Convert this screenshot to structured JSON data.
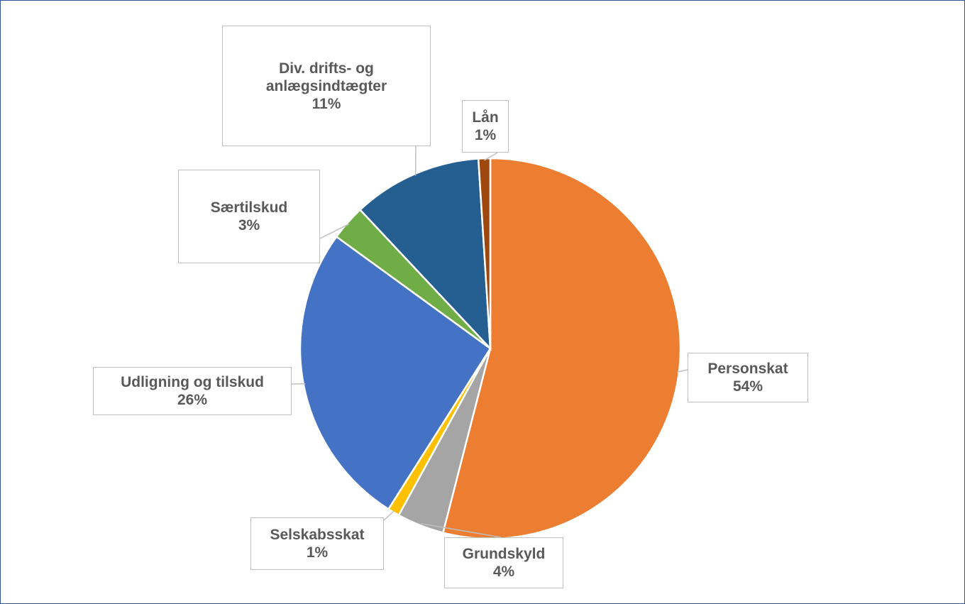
{
  "chart_data": {
    "type": "pie",
    "categories": [
      "Personskat",
      "Grundskyld",
      "Selskabsskat",
      "Udligning og tilskud",
      "Særtilskud",
      "Div. drifts- og anlægsindtægter",
      "Lån"
    ],
    "values": [
      54,
      4,
      1,
      26,
      3,
      11,
      1
    ],
    "value_labels": [
      "54%",
      "4%",
      "1%",
      "26%",
      "3%",
      "11%",
      "1%"
    ],
    "colors": [
      "#ed7d31",
      "#a5a5a5",
      "#ffc000",
      "#4472c4",
      "#70ad47",
      "#255e91",
      "#9e480e"
    ]
  }
}
